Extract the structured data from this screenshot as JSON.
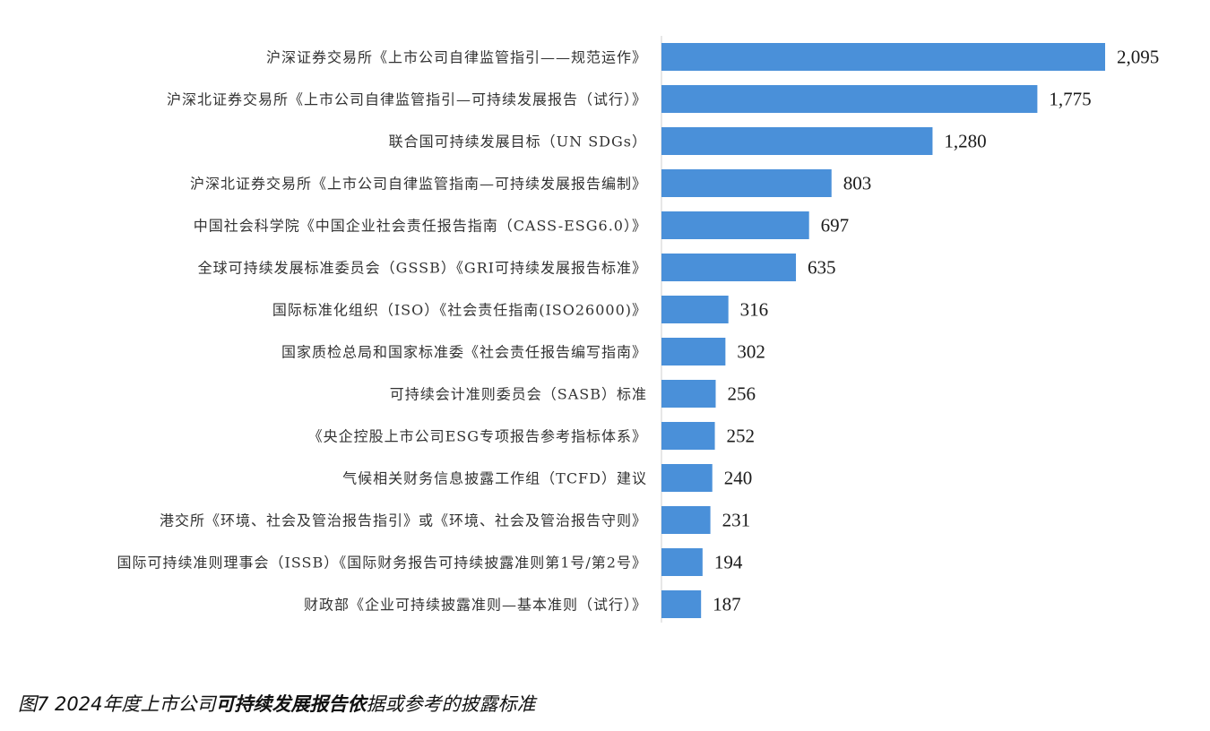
{
  "chart_data": {
    "type": "bar",
    "orientation": "horizontal",
    "categories": [
      "沪深证券交易所《上市公司自律监管指引——规范运作》",
      "沪深北证券交易所《上市公司自律监管指引—可持续发展报告（试行）》",
      "联合国可持续发展目标（UN SDGs）",
      "沪深北证券交易所《上市公司自律监管指南—可持续发展报告编制》",
      "中国社会科学院《中国企业社会责任报告指南（CASS-ESG6.0）》",
      "全球可持续发展标准委员会（GSSB）《GRI可持续发展报告标准》",
      "国际标准化组织（ISO）《社会责任指南(ISO26000)》",
      "国家质检总局和国家标准委《社会责任报告编写指南》",
      "可持续会计准则委员会（SASB）标准",
      "《央企控股上市公司ESG专项报告参考指标体系》",
      "气候相关财务信息披露工作组（TCFD）建议",
      "港交所《环境、社会及管治报告指引》或《环境、社会及管治报告守则》",
      "国际可持续准则理事会（ISSB）《国际财务报告可持续披露准则第1号/第2号》",
      "财政部《企业可持续披露准则—基本准则（试行）》"
    ],
    "values": [
      2095,
      1775,
      1280,
      803,
      697,
      635,
      316,
      302,
      256,
      252,
      240,
      231,
      194,
      187
    ],
    "value_labels": [
      "2,095",
      "1,775",
      "1,280",
      "803",
      "697",
      "635",
      "316",
      "302",
      "256",
      "252",
      "240",
      "231",
      "194",
      "187"
    ],
    "bar_color": "#4A90D9",
    "xlim": [
      0,
      2095
    ],
    "grid": false,
    "legend": "none"
  },
  "caption": {
    "prefix": "图7 2024年度上市公司",
    "bold": "可持续发展报告依",
    "suffix": "据或参考的披露标准"
  }
}
